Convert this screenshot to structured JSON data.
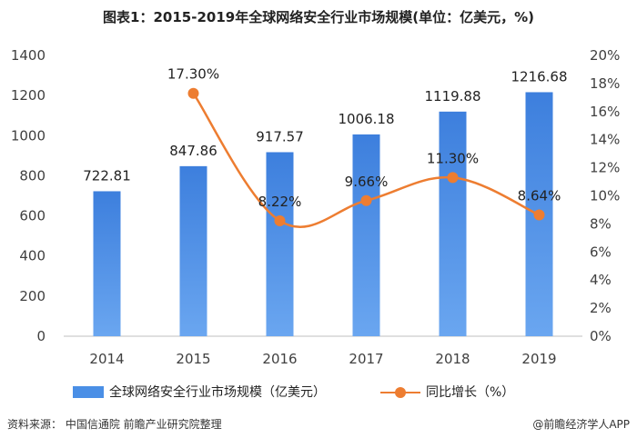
{
  "title": "图表1：2015-2019年全球网络安全行业市场规模(单位：亿美元，%)",
  "source": "资料来源：  中国信通院 前瞻产业研究院整理",
  "credit": "@前瞻经济学人APP",
  "colors": {
    "bar_light": "#6aa6f0",
    "bar_dark": "#3d7fdd",
    "line": "#ed7d31"
  },
  "legend": {
    "bar_label": "全球网络安全行业市场规模（亿美元）",
    "line_label": "同比增长（%）"
  },
  "chart_data": {
    "type": "bar",
    "categories": [
      "2014",
      "2015",
      "2016",
      "2017",
      "2018",
      "2019"
    ],
    "series": [
      {
        "name": "全球网络安全行业市场规模（亿美元）",
        "type": "bar",
        "axis": "left",
        "values": [
          722.81,
          847.86,
          917.57,
          1006.18,
          1119.88,
          1216.68
        ],
        "labels": [
          "722.81",
          "847.86",
          "917.57",
          "1006.18",
          "1119.88",
          "1216.68"
        ]
      },
      {
        "name": "同比增长（%）",
        "type": "line",
        "axis": "right",
        "values": [
          null,
          17.3,
          8.22,
          9.66,
          11.3,
          8.64
        ],
        "labels": [
          "",
          "17.30%",
          "8.22%",
          "9.66%",
          "11.30%",
          "8.64%"
        ]
      }
    ],
    "y_left": {
      "min": 0,
      "max": 1400,
      "ticks": [
        "0",
        "200",
        "400",
        "600",
        "800",
        "1000",
        "1200",
        "1400"
      ]
    },
    "y_right": {
      "min": 0,
      "max": 20,
      "ticks": [
        "0%",
        "2%",
        "4%",
        "6%",
        "8%",
        "10%",
        "12%",
        "14%",
        "16%",
        "18%",
        "20%"
      ]
    },
    "grid": false,
    "legend_position": "bottom"
  }
}
